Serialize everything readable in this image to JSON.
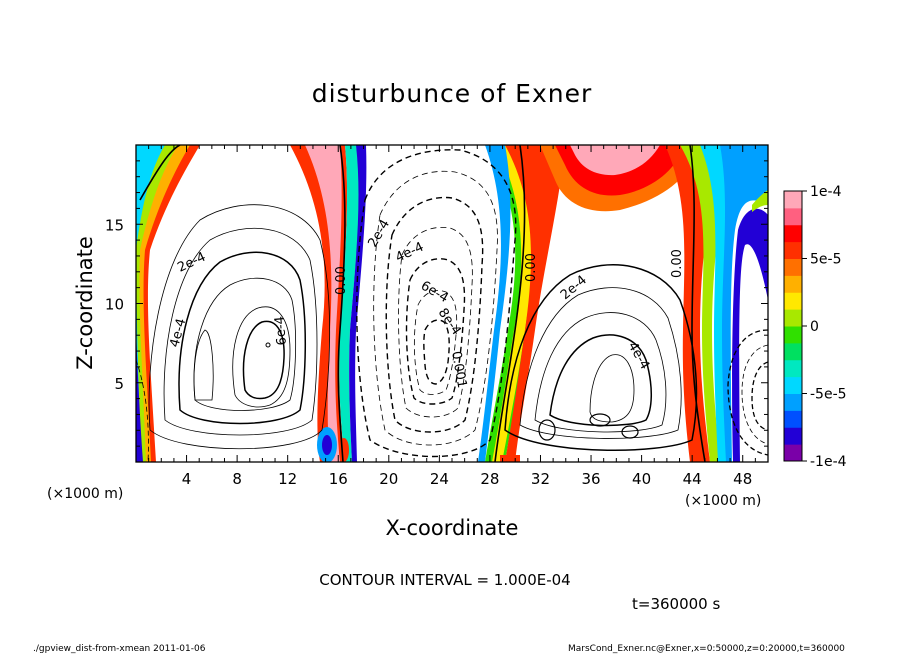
{
  "chart_data": {
    "type": "heatmap",
    "title": "disturbunce of Exner",
    "xlabel": "X-coordinate",
    "ylabel": "Z-coordinate",
    "x_unit_left": "(×1000 m)",
    "x_unit_right": "(×1000 m)",
    "xlim": [
      0,
      50
    ],
    "ylim": [
      0,
      20
    ],
    "x_ticks": [
      "4",
      "8",
      "12",
      "16",
      "20",
      "24",
      "28",
      "32",
      "36",
      "40",
      "44",
      "48"
    ],
    "y_ticks": [
      "5",
      "10",
      "15"
    ],
    "colorbar": {
      "range": [
        -0.0001,
        0.0001
      ],
      "tick_labels": [
        "1e-4",
        "5e-5",
        "0",
        "-5e-5",
        "-1e-4"
      ],
      "colors": [
        "#7a00a8",
        "#2200d6",
        "#0050ff",
        "#00a0ff",
        "#00d8ff",
        "#00e8c0",
        "#00e060",
        "#30e000",
        "#a8e800",
        "#ffe800",
        "#ffb000",
        "#ff7000",
        "#ff3000",
        "#ff0000",
        "#ff6080",
        "#ffa8b8"
      ]
    },
    "contour_labels": [
      "2e-4",
      "4e-4",
      "6e-4",
      "0.00",
      "2e-4",
      "4e-4",
      "6e-4",
      "8e-4",
      "0.001",
      "0.00",
      "2e-4",
      "4e-4",
      "0.00"
    ],
    "contour_interval_text": "CONTOUR INTERVAL = 1.000E-04",
    "time_text": "t=360000 s"
  },
  "footer": {
    "left": "./gpview_dist-from-xmean  2011-01-06",
    "right": "MarsCond_Exner.nc@Exner,x=0:50000,z=0:20000,t=360000"
  }
}
